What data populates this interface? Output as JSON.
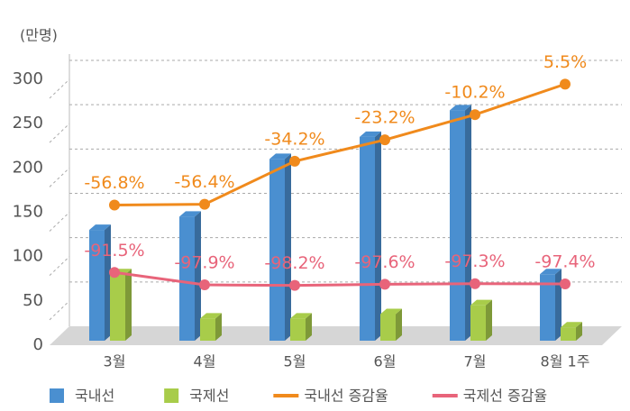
{
  "chart_data": {
    "type": "bar_line",
    "y_label": "(만명)",
    "categories": [
      "3월",
      "4월",
      "5월",
      "6월",
      "7월",
      "8월 1주"
    ],
    "ylim": [
      0,
      300
    ],
    "yticks": [
      0,
      50,
      100,
      150,
      200,
      250,
      300
    ],
    "y2lim": [
      -129,
      8
    ],
    "grid": true,
    "legend": "bottom",
    "series": [
      {
        "name": "국내선",
        "color": "#4a8fd0",
        "type": "bar",
        "values": [
          125,
          140,
          205,
          230,
          260,
          75
        ]
      },
      {
        "name": "국제선",
        "color": "#a8cc4a",
        "type": "bar",
        "values": [
          75,
          25,
          25,
          30,
          40,
          15
        ]
      },
      {
        "name": "국내선 증감율",
        "color": "#f08a1c",
        "type": "line",
        "axis": "y2",
        "values": [
          -56.8,
          -56.4,
          -34.2,
          -23.2,
          -10.2,
          5.5
        ],
        "value_labels": [
          "-56.8%",
          "-56.4%",
          "-34.2%",
          "-23.2%",
          "-10.2%",
          "5.5%"
        ]
      },
      {
        "name": "국제선 증감율",
        "color": "#e8647a",
        "type": "line",
        "axis": "y2",
        "values": [
          -91.5,
          -97.9,
          -98.2,
          -97.6,
          -97.3,
          -97.4
        ],
        "value_labels": [
          "-91.5%",
          "-97.9%",
          "-98.2%",
          "-97.6%",
          "-97.3%",
          "-97.4%"
        ]
      }
    ]
  }
}
